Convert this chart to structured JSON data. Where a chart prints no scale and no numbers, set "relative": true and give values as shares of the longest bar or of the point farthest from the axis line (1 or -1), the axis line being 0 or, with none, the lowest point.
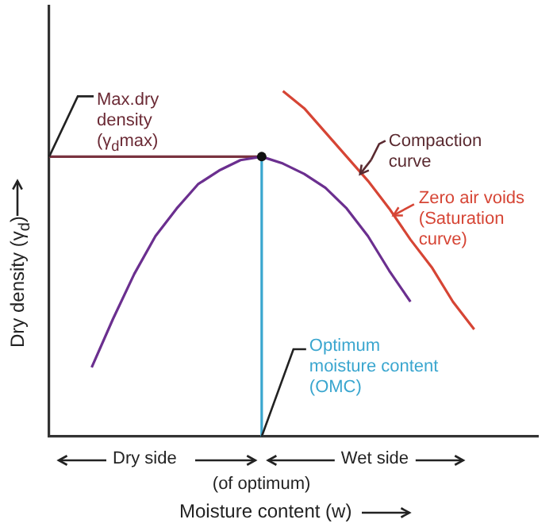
{
  "chart_data": {
    "type": "line",
    "relative": true,
    "xlabel": "Moisture content (w)",
    "ylabel": "Dry density (γ$_{d}$)",
    "grid": false,
    "legend": false,
    "tick_labels": false,
    "categories": [
      null,
      null,
      null,
      null,
      null,
      null,
      null,
      null,
      null,
      null,
      null,
      null,
      null,
      null,
      null,
      null,
      null,
      null,
      null,
      null,
      null,
      null,
      null,
      null
    ],
    "series": [
      {
        "color": "#6b2f8f",
        "values": [
          null,
          null,
          0.2,
          0.34,
          0.47,
          0.58,
          0.66,
          0.73,
          0.77,
          0.8,
          0.81,
          0.79,
          0.76,
          0.72,
          0.66,
          0.58,
          0.48,
          0.39,
          null,
          null,
          null,
          null,
          null,
          null
        ]
      },
      {
        "color": "#d64535",
        "values": [
          null,
          null,
          null,
          null,
          null,
          null,
          null,
          null,
          null,
          null,
          null,
          1.0,
          0.95,
          0.88,
          0.81,
          0.74,
          0.66,
          0.57,
          0.49,
          0.39,
          0.31,
          null,
          null,
          null
        ]
      },
      {
        "color": "#7a3340",
        "values": [
          0.81,
          0.81,
          0.81,
          0.81,
          0.81,
          0.81,
          0.81,
          0.81,
          0.81,
          0.81,
          0.81,
          null,
          null,
          null,
          null,
          null,
          null,
          null,
          null,
          null,
          null,
          null,
          null,
          null
        ]
      }
    ],
    "ref_lines": [
      {
        "axis": "x",
        "label": "Optimum moisture content (OMC)",
        "color": "#3aa6cf"
      }
    ],
    "annotations": [
      "Max.dry density (γ$_{d}$max)",
      "Compaction curve",
      "Zero air voids (Saturation curve)",
      "Dry side",
      "(of optimum)",
      "Wet side"
    ]
  }
}
